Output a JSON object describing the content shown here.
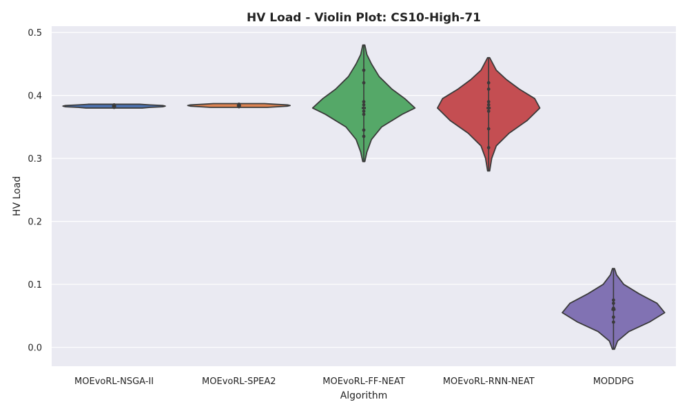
{
  "chart_data": {
    "type": "violin",
    "title": "HV Load - Violin Plot: CS10-High-71",
    "xlabel": "Algorithm",
    "ylabel": "HV Load",
    "ylim": [
      -0.03,
      0.51
    ],
    "yticks": [
      "0.0",
      "0.1",
      "0.2",
      "0.3",
      "0.4",
      "0.5"
    ],
    "grid": true,
    "categories": [
      "MOEvoRL-NSGA-II",
      "MOEvoRL-SPEA2",
      "MOEvoRL-FF-NEAT",
      "MOEvoRL-RNN-NEAT",
      "MODDPG"
    ],
    "series": [
      {
        "color": "#4c72b0",
        "min": 0.38,
        "max": 0.386,
        "median": 0.383,
        "q1": 0.382,
        "q3": 0.384,
        "density": [
          [
            0.38,
            0.55
          ],
          [
            0.381,
            0.7
          ],
          [
            0.382,
            0.95
          ],
          [
            0.383,
            1.0
          ],
          [
            0.384,
            0.95
          ],
          [
            0.385,
            0.7
          ],
          [
            0.386,
            0.5
          ]
        ],
        "points": [
          0.381,
          0.383,
          0.385
        ]
      },
      {
        "color": "#dd8452",
        "min": 0.381,
        "max": 0.387,
        "median": 0.384,
        "q1": 0.383,
        "q3": 0.385,
        "density": [
          [
            0.381,
            0.55
          ],
          [
            0.382,
            0.75
          ],
          [
            0.383,
            0.95
          ],
          [
            0.384,
            1.0
          ],
          [
            0.385,
            0.95
          ],
          [
            0.386,
            0.7
          ],
          [
            0.387,
            0.5
          ]
        ],
        "points": [
          0.382,
          0.384,
          0.386
        ]
      },
      {
        "color": "#55a868",
        "min": 0.295,
        "max": 0.48,
        "median": 0.38,
        "q1": 0.36,
        "q3": 0.42,
        "density": [
          [
            0.295,
            0.02
          ],
          [
            0.31,
            0.06
          ],
          [
            0.33,
            0.15
          ],
          [
            0.35,
            0.35
          ],
          [
            0.37,
            0.75
          ],
          [
            0.38,
            1.0
          ],
          [
            0.395,
            0.8
          ],
          [
            0.41,
            0.55
          ],
          [
            0.43,
            0.3
          ],
          [
            0.45,
            0.15
          ],
          [
            0.465,
            0.06
          ],
          [
            0.48,
            0.02
          ]
        ],
        "points": [
          0.335,
          0.345,
          0.37,
          0.375,
          0.385,
          0.39,
          0.42,
          0.44
        ]
      },
      {
        "color": "#c44e52",
        "min": 0.28,
        "max": 0.46,
        "median": 0.38,
        "q1": 0.34,
        "q3": 0.41,
        "density": [
          [
            0.28,
            0.02
          ],
          [
            0.3,
            0.06
          ],
          [
            0.32,
            0.15
          ],
          [
            0.34,
            0.4
          ],
          [
            0.36,
            0.75
          ],
          [
            0.38,
            1.0
          ],
          [
            0.395,
            0.9
          ],
          [
            0.41,
            0.6
          ],
          [
            0.425,
            0.35
          ],
          [
            0.44,
            0.15
          ],
          [
            0.46,
            0.02
          ]
        ],
        "points": [
          0.317,
          0.347,
          0.375,
          0.38,
          0.385,
          0.39,
          0.41,
          0.42
        ]
      },
      {
        "color": "#8172b3",
        "min": -0.003,
        "max": 0.125,
        "median": 0.06,
        "q1": 0.045,
        "q3": 0.075,
        "density": [
          [
            -0.003,
            0.02
          ],
          [
            0.01,
            0.08
          ],
          [
            0.025,
            0.3
          ],
          [
            0.04,
            0.7
          ],
          [
            0.055,
            1.0
          ],
          [
            0.07,
            0.85
          ],
          [
            0.085,
            0.5
          ],
          [
            0.1,
            0.2
          ],
          [
            0.115,
            0.06
          ],
          [
            0.125,
            0.02
          ]
        ],
        "points": [
          0.04,
          0.048,
          0.06,
          0.062,
          0.07,
          0.075
        ]
      }
    ]
  }
}
